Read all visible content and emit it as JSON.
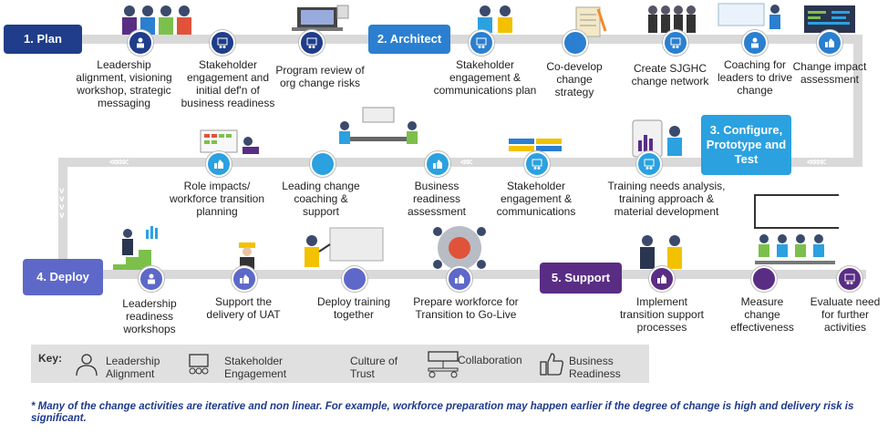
{
  "phases": {
    "plan": "1. Plan",
    "architect": "2. Architect",
    "configure": "3. Configure, Prototype and Test",
    "deploy": "4. Deploy",
    "support": "5. Support"
  },
  "activities": {
    "leadership_alignment": "Leadership alignment, visioning workshop, strategic messaging",
    "stakeholder_engagement_initial": "Stakeholder engagement and initial def'n of business readiness",
    "program_review": "Program review of org change risks",
    "stakeholder_comm_plan": "Stakeholder engagement & communications plan",
    "codevelop_strategy": "Co-develop change strategy",
    "create_network": "Create SJGHC change network",
    "coaching_leaders": "Coaching for leaders to drive change",
    "change_impact": "Change impact assessment",
    "role_impacts": "Role impacts/ workforce transition planning",
    "leading_change": "Leading change coaching & support",
    "business_readiness_assessment": "Business readiness assessment",
    "stakeholder_comms": "Stakeholder engagement & communications",
    "training_needs": "Training needs analysis, training approach & material development",
    "leadership_readiness": "Leadership readiness workshops",
    "support_uat": "Support the delivery of UAT",
    "deploy_training": "Deploy training together",
    "prepare_workforce": "Prepare workforce for Transition to Go-Live",
    "implement_support": "Implement transition support processes",
    "measure_effectiveness": "Measure change effectiveness",
    "evaluate_need": "Evaluate need for further activities"
  },
  "key": {
    "title": "Key:",
    "items": [
      "Leadership Alignment",
      "Stakeholder Engagement",
      "Culture of Trust",
      "Collaboration",
      "Business Readiness"
    ]
  },
  "footnote": "* Many of the change activities are iterative and non linear.  For example, workforce preparation may happen earlier if the degree of change is high and delivery risk is significant.",
  "colors": {
    "plan": "#1f3d8a",
    "architect": "#2b7fd0",
    "configure": "#2ba1e0",
    "deploy": "#5d68c8",
    "support": "#5a2d85",
    "track": "#d9d9d9"
  },
  "icons": [
    "leadership-icon",
    "stakeholder-icon",
    "trust-icon",
    "collaboration-icon",
    "readiness-icon"
  ]
}
